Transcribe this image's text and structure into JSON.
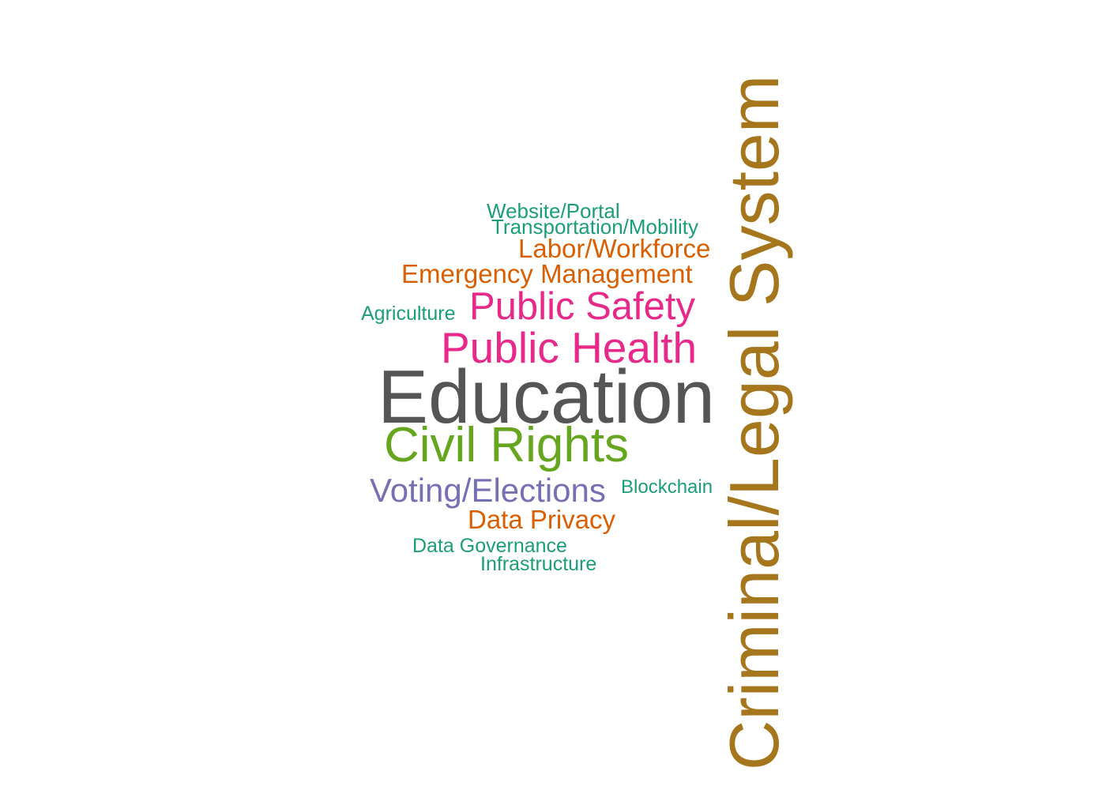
{
  "wordcloud": {
    "words": [
      {
        "key": "website",
        "text": "Website/Portal",
        "color": "#1b9e77"
      },
      {
        "key": "transport",
        "text": "Transportation/Mobility",
        "color": "#1b9e77"
      },
      {
        "key": "labor",
        "text": "Labor/Workforce",
        "color": "#d95f02"
      },
      {
        "key": "emergency",
        "text": "Emergency Management",
        "color": "#d95f02"
      },
      {
        "key": "agri",
        "text": "Agriculture",
        "color": "#1b9e77"
      },
      {
        "key": "safety",
        "text": "Public Safety",
        "color": "#e7298a"
      },
      {
        "key": "health",
        "text": "Public Health",
        "color": "#e7298a"
      },
      {
        "key": "education",
        "text": "Education",
        "color": "#555555"
      },
      {
        "key": "civil",
        "text": "Civil Rights",
        "color": "#66a61e"
      },
      {
        "key": "voting",
        "text": "Voting/Elections",
        "color": "#7570b3"
      },
      {
        "key": "blockchain",
        "text": "Blockchain",
        "color": "#1b9e77"
      },
      {
        "key": "privacy",
        "text": "Data Privacy",
        "color": "#d95f02"
      },
      {
        "key": "governance",
        "text": "Data Governance",
        "color": "#1b9e77"
      },
      {
        "key": "infra",
        "text": "Infrastructure",
        "color": "#1b9e77"
      },
      {
        "key": "criminal",
        "text": "Criminal/Legal System",
        "color": "#a6761d"
      }
    ]
  }
}
